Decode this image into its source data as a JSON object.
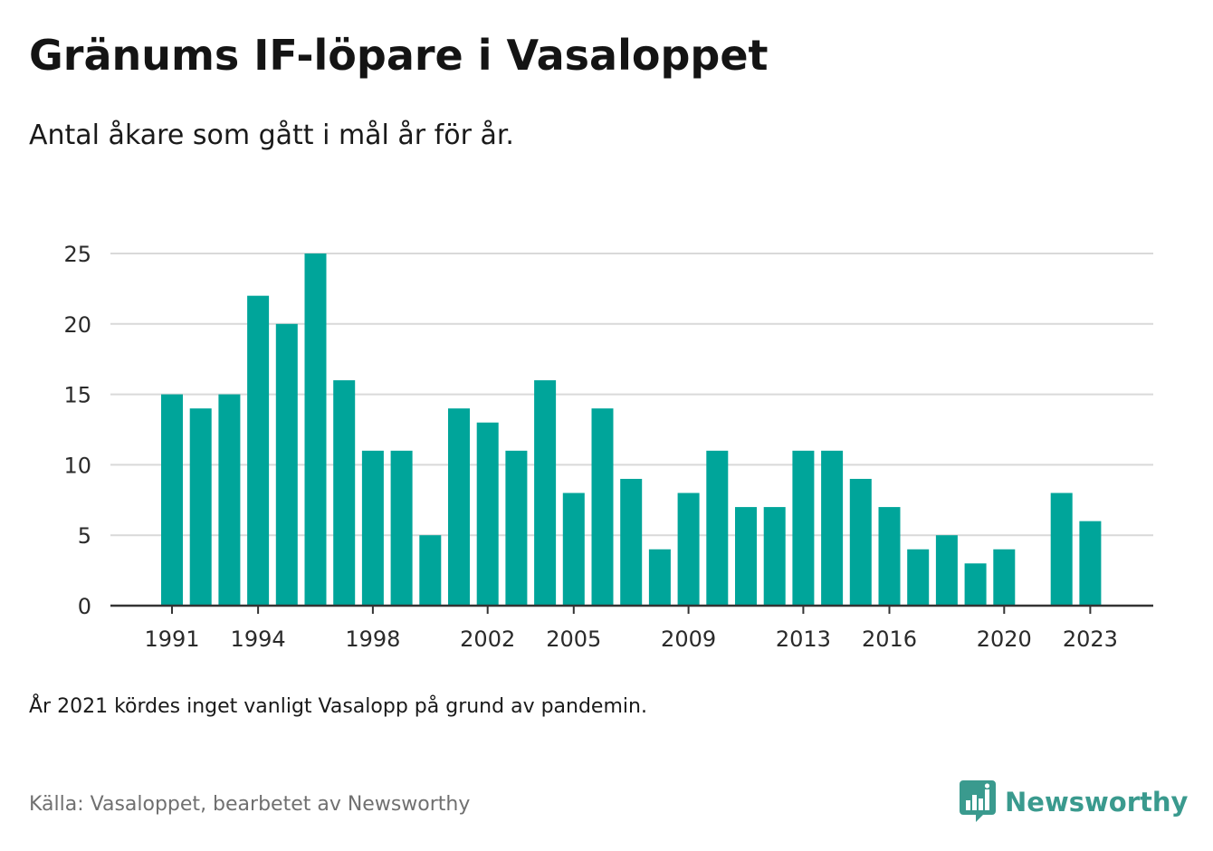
{
  "header": {
    "title": "Gränums IF-löpare i Vasaloppet",
    "subtitle": "Antal åkare som gått i mål år för år."
  },
  "footer": {
    "note": "År 2021 kördes inget vanligt Vasalopp på grund av pandemin.",
    "source": "Källa: Vasaloppet, bearbetet av Newsworthy",
    "brand": "Newsworthy"
  },
  "colors": {
    "bar": "#00a59a",
    "grid": "#d9d9d9",
    "axis": "#333333",
    "brand": "#3a9a8e"
  },
  "icons": {
    "brand_logo": "newsworthy-logo-icon"
  },
  "chart_data": {
    "type": "bar",
    "title": "Gränums IF-löpare i Vasaloppet",
    "subtitle": "Antal åkare som gått i mål år för år.",
    "xlabel": "",
    "ylabel": "",
    "categories": [
      1991,
      1992,
      1993,
      1994,
      1995,
      1996,
      1997,
      1998,
      1999,
      2000,
      2001,
      2002,
      2003,
      2004,
      2005,
      2006,
      2007,
      2008,
      2009,
      2010,
      2011,
      2012,
      2013,
      2014,
      2015,
      2016,
      2017,
      2018,
      2019,
      2020,
      2021,
      2022,
      2023
    ],
    "values": [
      15,
      14,
      15,
      22,
      20,
      25,
      16,
      11,
      11,
      5,
      14,
      13,
      11,
      16,
      8,
      14,
      9,
      4,
      8,
      11,
      7,
      7,
      11,
      11,
      9,
      7,
      4,
      5,
      3,
      4,
      null,
      8,
      6
    ],
    "x_tick_labels": [
      "1991",
      "1994",
      "1998",
      "2002",
      "2005",
      "2009",
      "2013",
      "2016",
      "2020",
      "2023"
    ],
    "y_ticks": [
      0,
      5,
      10,
      15,
      20,
      25
    ],
    "ylim": [
      0,
      25
    ],
    "grid": true,
    "legend": "none"
  }
}
